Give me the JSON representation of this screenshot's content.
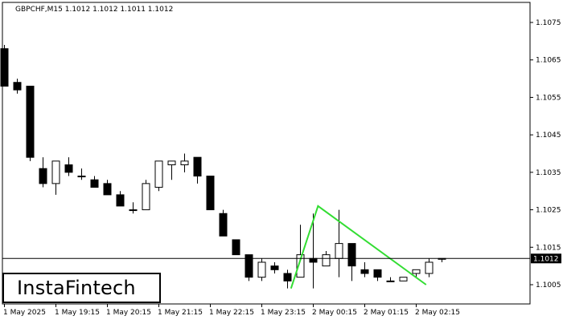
{
  "chart_title": "GBPCHF,M15  1.1012 1.1012 1.1011 1.1012",
  "logo_text": "InstaFintech",
  "price_tag": "1.1012",
  "chart_data": {
    "type": "candlestick",
    "symbol": "GBPCHF",
    "timeframe": "M15",
    "ylim": [
      1.1,
      1.108
    ],
    "y_ticks": [
      "1.1075",
      "1.1065",
      "1.1055",
      "1.1045",
      "1.1035",
      "1.1025",
      "1.1015",
      "1.1005"
    ],
    "x_ticks": [
      "1 May 2025",
      "1 May 19:15",
      "1 May 20:15",
      "1 May 21:15",
      "1 May 22:15",
      "1 May 23:15",
      "2 May 00:15",
      "2 May 01:15",
      "2 May 02:15"
    ],
    "current_price": 1.1012,
    "candles": [
      {
        "o": 1.1068,
        "h": 1.1069,
        "l": 1.1058,
        "c": 1.1058
      },
      {
        "o": 1.1059,
        "h": 1.106,
        "l": 1.1056,
        "c": 1.1057
      },
      {
        "o": 1.1058,
        "h": 1.1058,
        "l": 1.1038,
        "c": 1.1039
      },
      {
        "o": 1.1036,
        "h": 1.1039,
        "l": 1.1031,
        "c": 1.1032
      },
      {
        "o": 1.1032,
        "h": 1.1038,
        "l": 1.1029,
        "c": 1.1038
      },
      {
        "o": 1.1037,
        "h": 1.1039,
        "l": 1.1034,
        "c": 1.1035
      },
      {
        "o": 1.1034,
        "h": 1.1036,
        "l": 1.1033,
        "c": 1.1034
      },
      {
        "o": 1.1033,
        "h": 1.1034,
        "l": 1.1031,
        "c": 1.1031
      },
      {
        "o": 1.1032,
        "h": 1.1033,
        "l": 1.1029,
        "c": 1.1029
      },
      {
        "o": 1.1029,
        "h": 1.103,
        "l": 1.1026,
        "c": 1.1026
      },
      {
        "o": 1.1025,
        "h": 1.1027,
        "l": 1.1024,
        "c": 1.1025
      },
      {
        "o": 1.1025,
        "h": 1.1033,
        "l": 1.1025,
        "c": 1.1032
      },
      {
        "o": 1.1031,
        "h": 1.1038,
        "l": 1.103,
        "c": 1.1038
      },
      {
        "o": 1.1037,
        "h": 1.1038,
        "l": 1.1033,
        "c": 1.1038
      },
      {
        "o": 1.1037,
        "h": 1.104,
        "l": 1.1035,
        "c": 1.1038
      },
      {
        "o": 1.1039,
        "h": 1.1039,
        "l": 1.1032,
        "c": 1.1034
      },
      {
        "o": 1.1034,
        "h": 1.1034,
        "l": 1.1025,
        "c": 1.1025
      },
      {
        "o": 1.1024,
        "h": 1.1025,
        "l": 1.1018,
        "c": 1.1018
      },
      {
        "o": 1.1017,
        "h": 1.1017,
        "l": 1.1013,
        "c": 1.1013
      },
      {
        "o": 1.1013,
        "h": 1.1013,
        "l": 1.1006,
        "c": 1.1007
      },
      {
        "o": 1.1007,
        "h": 1.1012,
        "l": 1.1006,
        "c": 1.1011
      },
      {
        "o": 1.101,
        "h": 1.1011,
        "l": 1.1008,
        "c": 1.1009
      },
      {
        "o": 1.1008,
        "h": 1.1009,
        "l": 1.1004,
        "c": 1.1006
      },
      {
        "o": 1.1007,
        "h": 1.1021,
        "l": 1.1007,
        "c": 1.1013
      },
      {
        "o": 1.1012,
        "h": 1.1024,
        "l": 1.1004,
        "c": 1.1011
      },
      {
        "o": 1.101,
        "h": 1.1014,
        "l": 1.101,
        "c": 1.1013
      },
      {
        "o": 1.1012,
        "h": 1.1025,
        "l": 1.1007,
        "c": 1.1016
      },
      {
        "o": 1.1016,
        "h": 1.1016,
        "l": 1.1006,
        "c": 1.101
      },
      {
        "o": 1.1009,
        "h": 1.1011,
        "l": 1.1007,
        "c": 1.1008
      },
      {
        "o": 1.1009,
        "h": 1.1009,
        "l": 1.1006,
        "c": 1.1007
      },
      {
        "o": 1.1006,
        "h": 1.1007,
        "l": 1.1006,
        "c": 1.1006
      },
      {
        "o": 1.1006,
        "h": 1.1007,
        "l": 1.1006,
        "c": 1.1007
      },
      {
        "o": 1.1008,
        "h": 1.1009,
        "l": 1.1007,
        "c": 1.1009
      },
      {
        "o": 1.1008,
        "h": 1.1012,
        "l": 1.1007,
        "c": 1.1011
      },
      {
        "o": 1.1012,
        "h": 1.1012,
        "l": 1.1011,
        "c": 1.1012
      }
    ],
    "pattern_line": [
      {
        "candle": 22.3,
        "price": 1.1004
      },
      {
        "candle": 24.4,
        "price": 1.1026
      },
      {
        "candle": 32.8,
        "price": 1.1005
      }
    ],
    "grid": false
  },
  "colors": {
    "background": "#ffffff",
    "bear_candle": "#000000",
    "bull_candle": "#ffffff",
    "candle_outline": "#000000",
    "pattern_line": "#33dd33",
    "price_tag_bg": "#000000",
    "price_tag_text": "#ffffff"
  }
}
